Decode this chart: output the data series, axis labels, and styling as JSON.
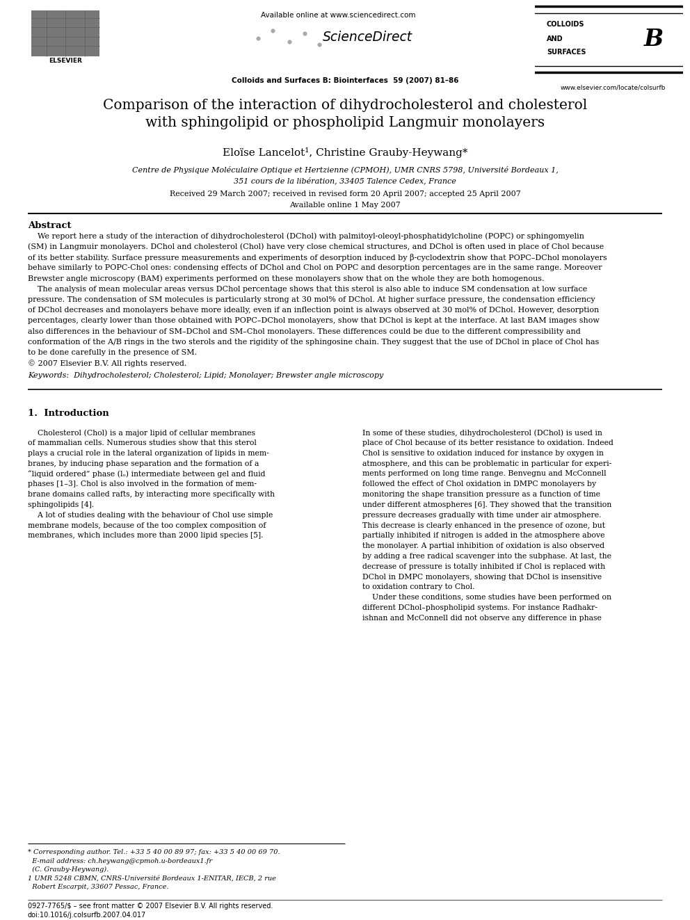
{
  "background_color": "#ffffff",
  "page_width": 9.92,
  "page_height": 13.23,
  "header": {
    "available_online_text": "Available online at www.sciencedirect.com",
    "sciencedirect_text": "ScienceDirect",
    "journal_name": "Colloids and Surfaces B: Biointerfaces  59 (2007) 81–86",
    "colloids_line1": "COLLOIDS",
    "colloids_line2": "AND",
    "colloids_line3": "SURFACES",
    "colloids_letter": "B",
    "elsevier_text": "ELSEVIER",
    "website": "www.elsevier.com/locate/colsurfb"
  },
  "title": "Comparison of the interaction of dihydrocholesterol and cholesterol\nwith sphingolipid or phospholipid Langmuir monolayers",
  "authors_full": "Eloïse Lancelot¹, Christine Grauby-Heywang*",
  "affiliation_line1": "Centre de Physique Moléculaire Optique et Hertzienne (CPMOH), UMR CNRS 5798, Université Bordeaux 1,",
  "affiliation_line2": "351 cours de la libération, 33405 Talence Cedex, France",
  "received": "Received 29 March 2007; received in revised form 20 April 2007; accepted 25 April 2007",
  "available": "Available online 1 May 2007",
  "abstract_heading": "Abstract",
  "keywords": "Keywords:  Dihydrocholesterol; Cholesterol; Lipid; Monolayer; Brewster angle microscopy",
  "section1_heading": "1.  Introduction",
  "footnote_star": "* Corresponding author. Tel.: +33 5 40 00 89 97; fax: +33 5 40 00 69 70.",
  "footnote_email": "  E-mail address: ch.heywang@cpmoh.u-bordeaux1.fr",
  "footnote_c": "  (C. Grauby-Heywang).",
  "footnote_1": "1 UMR 5248 CBMN, CNRS-Université Bordeaux 1-ENITAR, IECB, 2 rue",
  "footnote_1b": "  Robert Escarpit, 33607 Pessac, France.",
  "bottom_issn": "0927-7765/$ – see front matter © 2007 Elsevier B.V. All rights reserved.",
  "bottom_doi": "doi:10.1016/j.colsurfb.2007.04.017",
  "abstract_lines": [
    "    We report here a study of the interaction of dihydrocholesterol (DChol) with palmitoyl-oleoyl-phosphatidylcholine (POPC) or sphingomyelin",
    "(SM) in Langmuir monolayers. DChol and cholesterol (Chol) have very close chemical structures, and DChol is often used in place of Chol because",
    "of its better stability. Surface pressure measurements and experiments of desorption induced by β-cyclodextrin show that POPC–DChol monolayers",
    "behave similarly to POPC-Chol ones: condensing effects of DChol and Chol on POPC and desorption percentages are in the same range. Moreover",
    "Brewster angle microscopy (BAM) experiments performed on these monolayers show that on the whole they are both homogenous.",
    "    The analysis of mean molecular areas versus DChol percentage shows that this sterol is also able to induce SM condensation at low surface",
    "pressure. The condensation of SM molecules is particularly strong at 30 mol% of DChol. At higher surface pressure, the condensation efficiency",
    "of DChol decreases and monolayers behave more ideally, even if an inflection point is always observed at 30 mol% of DChol. However, desorption",
    "percentages, clearly lower than those obtained with POPC–DChol monolayers, show that DChol is kept at the interface. At last BAM images show",
    "also differences in the behaviour of SM–DChol and SM–Chol monolayers. These differences could be due to the different compressibility and",
    "conformation of the A/B rings in the two sterols and the rigidity of the sphingosine chain. They suggest that the use of DChol in place of Chol has",
    "to be done carefully in the presence of SM.",
    "© 2007 Elsevier B.V. All rights reserved."
  ],
  "col1_lines": [
    "    Cholesterol (Chol) is a major lipid of cellular membranes",
    "of mammalian cells. Numerous studies show that this sterol",
    "plays a crucial role in the lateral organization of lipids in mem-",
    "branes, by inducing phase separation and the formation of a",
    "“liquid ordered” phase (lₒ) intermediate between gel and fluid",
    "phases [1–3]. Chol is also involved in the formation of mem-",
    "brane domains called rafts, by interacting more specifically with",
    "sphingolipids [4].",
    "    A lot of studies dealing with the behaviour of Chol use simple",
    "membrane models, because of the too complex composition of",
    "membranes, which includes more than 2000 lipid species [5]."
  ],
  "col2_lines": [
    "In some of these studies, dihydrocholesterol (DChol) is used in",
    "place of Chol because of its better resistance to oxidation. Indeed",
    "Chol is sensitive to oxidation induced for instance by oxygen in",
    "atmosphere, and this can be problematic in particular for experi-",
    "ments performed on long time range. Benvegnu and McConnell",
    "followed the effect of Chol oxidation in DMPC monolayers by",
    "monitoring the shape transition pressure as a function of time",
    "under different atmospheres [6]. They showed that the transition",
    "pressure decreases gradually with time under air atmosphere.",
    "This decrease is clearly enhanced in the presence of ozone, but",
    "partially inhibited if nitrogen is added in the atmosphere above",
    "the monolayer. A partial inhibition of oxidation is also observed",
    "by adding a free radical scavenger into the subphase. At last, the",
    "decrease of pressure is totally inhibited if Chol is replaced with",
    "DChol in DMPC monolayers, showing that DChol is insensitive",
    "to oxidation contrary to Chol.",
    "    Under these conditions, some studies have been performed on",
    "different DChol–phospholipid systems. For instance Radhakr-",
    "ishnan and McConnell did not observe any difference in phase"
  ]
}
